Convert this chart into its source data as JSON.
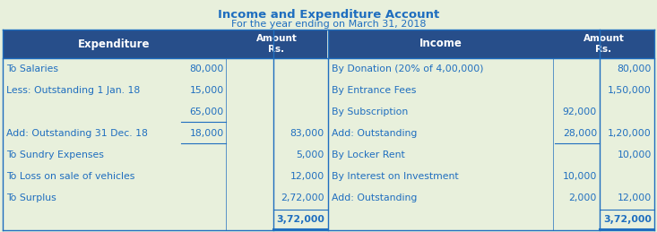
{
  "title1": "Income and Expenditure Account",
  "title2": "For the year ending on March 31, 2018",
  "header_bg": "#274E8A",
  "header_fg": "#FFFFFF",
  "body_bg": "#E8F0DC",
  "body_fg": "#1F6EBF",
  "title_fg": "#1F6EBF",
  "outer_bg": "#E8F0DC",
  "left_rows": [
    {
      "label": "To Salaries",
      "sub_amt": "80,000",
      "main_amt": "",
      "underline_sub": false,
      "bold": false
    },
    {
      "label": "Less: Outstanding 1 Jan. 18",
      "sub_amt": "15,000",
      "main_amt": "",
      "underline_sub": false,
      "bold": false
    },
    {
      "label": "",
      "sub_amt": "65,000",
      "main_amt": "",
      "underline_sub": true,
      "bold": false
    },
    {
      "label": "Add: Outstanding 31 Dec. 18",
      "sub_amt": "18,000",
      "main_amt": "83,000",
      "underline_sub": true,
      "bold": false
    },
    {
      "label": "To Sundry Expenses",
      "sub_amt": "",
      "main_amt": "5,000",
      "underline_sub": false,
      "bold": false
    },
    {
      "label": "To Loss on sale of vehicles",
      "sub_amt": "",
      "main_amt": "12,000",
      "underline_sub": false,
      "bold": false
    },
    {
      "label": "To Surplus",
      "sub_amt": "",
      "main_amt": "2,72,000",
      "underline_sub": false,
      "bold": false
    },
    {
      "label": "",
      "sub_amt": "",
      "main_amt": "3,72,000",
      "underline_sub": false,
      "bold": true
    }
  ],
  "right_rows": [
    {
      "label": "By Donation (20% of 4,00,000)",
      "sub_amt": "",
      "main_amt": "80,000",
      "underline_sub": false,
      "bold": false
    },
    {
      "label": "By Entrance Fees",
      "sub_amt": "",
      "main_amt": "1,50,000",
      "underline_sub": false,
      "bold": false
    },
    {
      "label": "By Subscription",
      "sub_amt": "92,000",
      "main_amt": "",
      "underline_sub": false,
      "bold": false
    },
    {
      "label": "Add: Outstanding",
      "sub_amt": "28,000",
      "main_amt": "1,20,000",
      "underline_sub": true,
      "bold": false
    },
    {
      "label": "By Locker Rent",
      "sub_amt": "",
      "main_amt": "10,000",
      "underline_sub": false,
      "bold": false
    },
    {
      "label": "By Interest on Investment",
      "sub_amt": "10,000",
      "main_amt": "",
      "underline_sub": false,
      "bold": false
    },
    {
      "label": "Add: Outstanding",
      "sub_amt": "2,000",
      "main_amt": "12,000",
      "underline_sub": false,
      "bold": false
    },
    {
      "label": "",
      "sub_amt": "",
      "main_amt": "3,72,000",
      "underline_sub": false,
      "bold": true
    }
  ],
  "figw": 7.33,
  "figh": 2.59,
  "dpi": 100
}
